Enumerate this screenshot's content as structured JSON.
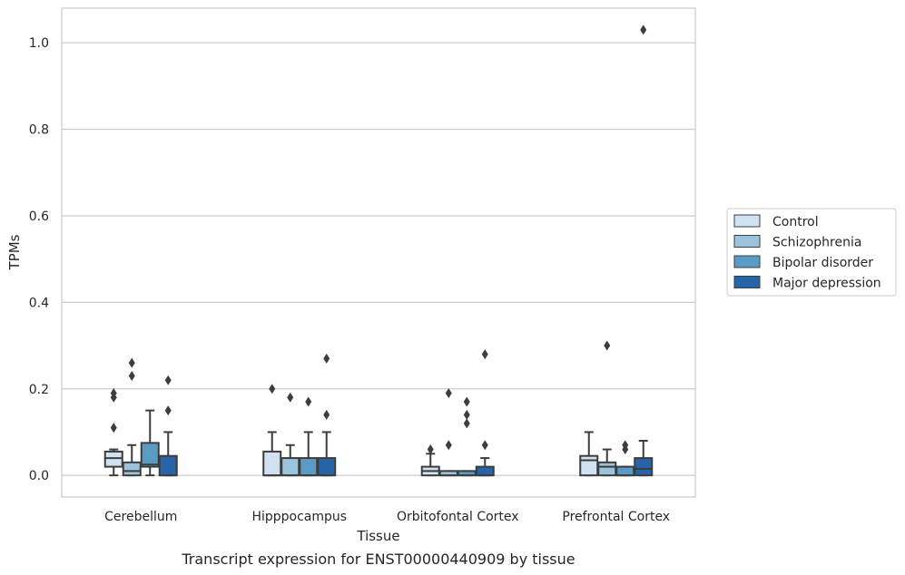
{
  "chart_data": {
    "type": "box",
    "title": "",
    "caption": "Transcript expression for ENST00000440909 by tissue",
    "xlabel": "Tissue",
    "ylabel": "TPMs",
    "ylim": [
      -0.05,
      1.08
    ],
    "yticks": [
      0.0,
      0.2,
      0.4,
      0.6,
      0.8,
      1.0
    ],
    "ytick_labels": [
      "0.0",
      "0.2",
      "0.4",
      "0.6",
      "0.8",
      "1.0"
    ],
    "grid": "horizontal",
    "legend_position": "right",
    "categories": [
      "Cerebellum",
      "Hipppocampus",
      "Orbitofontal Cortex",
      "Prefrontal Cortex"
    ],
    "series": [
      {
        "name": "Control",
        "color": "#d0e1f2",
        "boxes": [
          {
            "whislo": 0.0,
            "q1": 0.02,
            "median": 0.04,
            "q3": 0.055,
            "whishi": 0.06,
            "fliers": [
              0.11,
              0.18,
              0.19
            ]
          },
          {
            "whislo": 0.0,
            "q1": 0.0,
            "median": 0.0,
            "q3": 0.055,
            "whishi": 0.1,
            "fliers": [
              0.2
            ]
          },
          {
            "whislo": 0.0,
            "q1": 0.0,
            "median": 0.01,
            "q3": 0.02,
            "whishi": 0.05,
            "fliers": [
              0.06
            ]
          },
          {
            "whislo": 0.0,
            "q1": 0.0,
            "median": 0.035,
            "q3": 0.045,
            "whishi": 0.1,
            "fliers": []
          }
        ]
      },
      {
        "name": "Schizophrenia",
        "color": "#9cc3dc",
        "boxes": [
          {
            "whislo": 0.0,
            "q1": 0.0,
            "median": 0.01,
            "q3": 0.03,
            "whishi": 0.07,
            "fliers": [
              0.23,
              0.26
            ]
          },
          {
            "whislo": 0.0,
            "q1": 0.0,
            "median": 0.0,
            "q3": 0.04,
            "whishi": 0.07,
            "fliers": [
              0.18
            ]
          },
          {
            "whislo": 0.0,
            "q1": 0.0,
            "median": 0.0,
            "q3": 0.01,
            "whishi": 0.01,
            "fliers": [
              0.07,
              0.19
            ]
          },
          {
            "whislo": 0.0,
            "q1": 0.0,
            "median": 0.02,
            "q3": 0.03,
            "whishi": 0.06,
            "fliers": [
              0.3
            ]
          }
        ]
      },
      {
        "name": "Bipolar disorder",
        "color": "#5a9bc6",
        "boxes": [
          {
            "whislo": 0.0,
            "q1": 0.02,
            "median": 0.025,
            "q3": 0.075,
            "whishi": 0.15,
            "fliers": []
          },
          {
            "whislo": 0.0,
            "q1": 0.0,
            "median": 0.0,
            "q3": 0.04,
            "whishi": 0.1,
            "fliers": [
              0.17
            ]
          },
          {
            "whislo": 0.0,
            "q1": 0.0,
            "median": 0.0,
            "q3": 0.01,
            "whishi": 0.01,
            "fliers": [
              0.12,
              0.14,
              0.17
            ]
          },
          {
            "whislo": 0.0,
            "q1": 0.0,
            "median": 0.0,
            "q3": 0.02,
            "whishi": 0.02,
            "fliers": [
              0.06,
              0.07
            ]
          }
        ]
      },
      {
        "name": "Major depression",
        "color": "#2564a6",
        "boxes": [
          {
            "whislo": 0.0,
            "q1": 0.0,
            "median": 0.0,
            "q3": 0.045,
            "whishi": 0.1,
            "fliers": [
              0.15,
              0.22
            ]
          },
          {
            "whislo": 0.0,
            "q1": 0.0,
            "median": 0.0,
            "q3": 0.04,
            "whishi": 0.1,
            "fliers": [
              0.14,
              0.27
            ]
          },
          {
            "whislo": 0.0,
            "q1": 0.0,
            "median": 0.0,
            "q3": 0.02,
            "whishi": 0.04,
            "fliers": [
              0.07,
              0.28
            ]
          },
          {
            "whislo": 0.0,
            "q1": 0.0,
            "median": 0.015,
            "q3": 0.04,
            "whishi": 0.08,
            "fliers": [
              1.03
            ]
          }
        ]
      }
    ]
  }
}
